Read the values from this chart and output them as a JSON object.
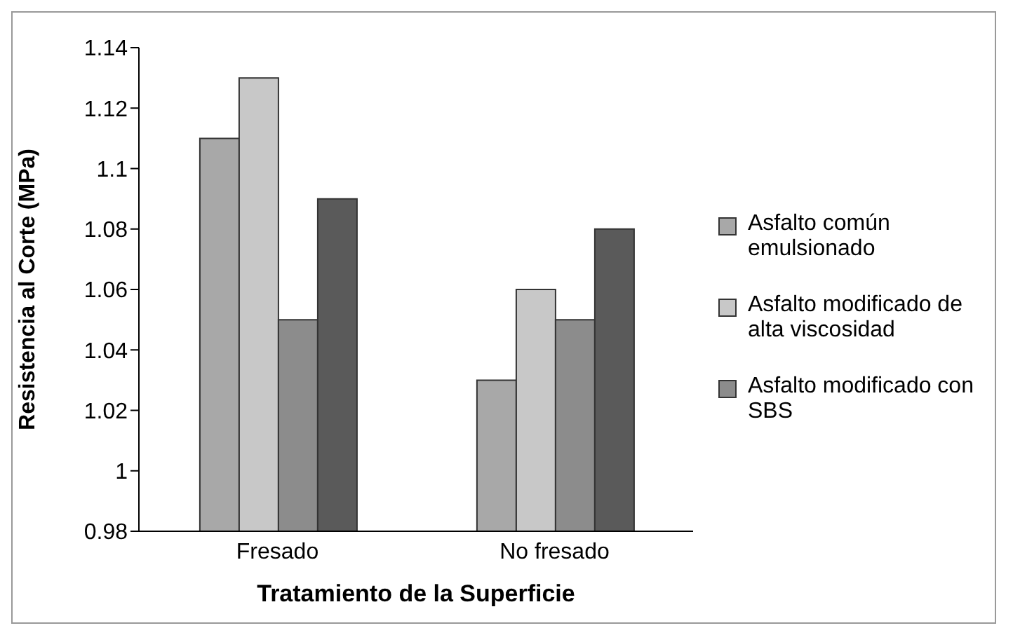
{
  "chart_data": {
    "type": "bar",
    "xlabel": "Tratamiento de la Superficie",
    "ylabel": "Resistencia al Corte (MPa)",
    "categories": [
      "Fresado",
      "No fresado"
    ],
    "series": [
      {
        "name": "Asfalto común emulsionado",
        "color": "#a8a8a8",
        "values": [
          1.11,
          1.03
        ]
      },
      {
        "name": "Asfalto modificado de alta viscosidad",
        "color": "#c8c8c8",
        "values": [
          1.13,
          1.06
        ]
      },
      {
        "name": "Asfalto modificado con SBS",
        "color": "#8c8c8c",
        "values": [
          1.05,
          1.05
        ]
      },
      {
        "color": "#5a5a5a",
        "values": [
          1.09,
          1.08
        ]
      }
    ],
    "ylim": [
      0.98,
      1.14
    ],
    "yticks": [
      0.98,
      1,
      1.02,
      1.04,
      1.06,
      1.08,
      1.1,
      1.12,
      1.14
    ],
    "legend": "right"
  }
}
